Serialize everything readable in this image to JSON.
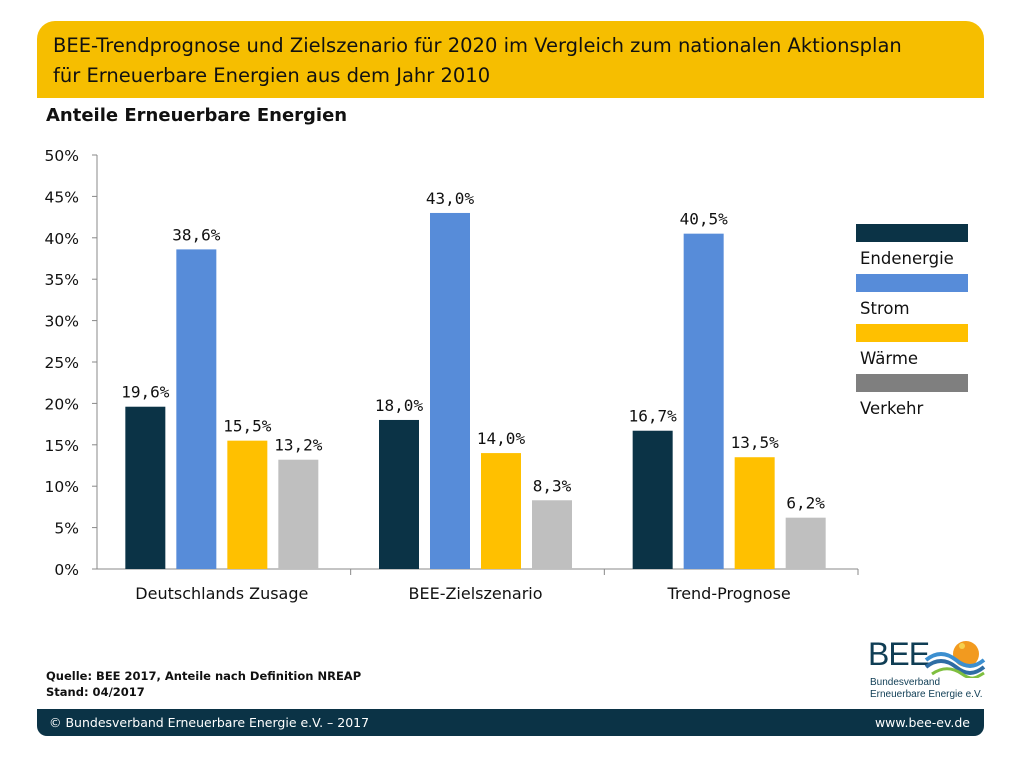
{
  "header": {
    "title_line1": "BEE-Trendprognose und Zielszenario für 2020 im Vergleich zum nationalen Aktionsplan",
    "title_line2": "für Erneuerbare Energien aus dem Jahr 2010"
  },
  "chart_data": {
    "type": "bar",
    "title": "Anteile Erneuerbare Energien",
    "xlabel": "",
    "ylabel": "",
    "categories": [
      "Deutschlands Zusage",
      "BEE-Zielszenario",
      "Trend-Prognose"
    ],
    "ylim": [
      0,
      50
    ],
    "y_ticks": [
      "0%",
      "5%",
      "10%",
      "15%",
      "20%",
      "25%",
      "30%",
      "35%",
      "40%",
      "45%",
      "50%"
    ],
    "y_tick_values": [
      0,
      5,
      10,
      15,
      20,
      25,
      30,
      35,
      40,
      45,
      50
    ],
    "grid": false,
    "legend_position": "right",
    "series": [
      {
        "name": "Endenergie",
        "color": "#0B3346",
        "values": [
          19.6,
          18.0,
          16.7
        ],
        "labels": [
          "19,6%",
          "18,0%",
          "16,7%"
        ]
      },
      {
        "name": "Strom",
        "color": "#578CD9",
        "values": [
          38.6,
          43.0,
          40.5
        ],
        "labels": [
          "38,6%",
          "43,0%",
          "40,5%"
        ]
      },
      {
        "name": "Wärme",
        "color": "#FFC000",
        "values": [
          15.5,
          14.0,
          13.5
        ],
        "labels": [
          "15,5%",
          "14,0%",
          "13,5%"
        ]
      },
      {
        "name": "Verkehr",
        "color": "#BFBFBF",
        "values": [
          13.2,
          8.3,
          6.2
        ],
        "labels": [
          "13,2%",
          "8,3%",
          "6,2%"
        ]
      }
    ]
  },
  "legend": {
    "items": [
      {
        "label": "Endenergie",
        "color": "#0B3346"
      },
      {
        "label": "Strom",
        "color": "#578CD9"
      },
      {
        "label": "Wärme",
        "color": "#FFC000"
      },
      {
        "label": "Verkehr",
        "color": "#7F7F7F"
      }
    ]
  },
  "source": {
    "line1": "Quelle: BEE 2017, Anteile nach Definition NREAP",
    "line2": "Stand: 04/2017"
  },
  "logo": {
    "text": "BEE",
    "sub1": "Bundesverband",
    "sub2": "Erneuerbare Energie e.V."
  },
  "footer": {
    "left": "© Bundesverband Erneuerbare Energie e.V. – 2017",
    "right": "www.bee-ev.de"
  },
  "colors": {
    "banner": "#F6BE00",
    "footer": "#0B3346"
  }
}
